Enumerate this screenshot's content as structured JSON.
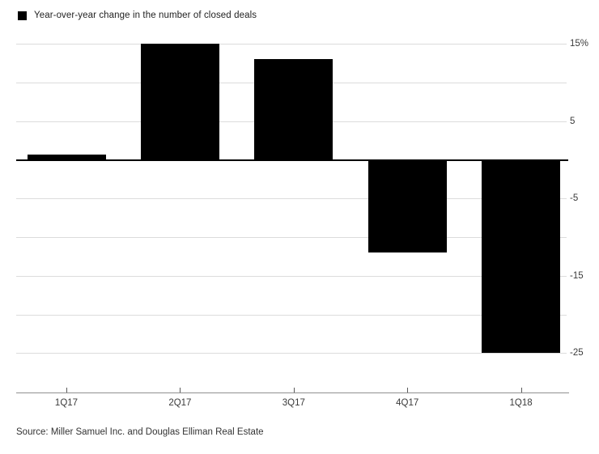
{
  "legend": {
    "label": "Year-over-year change in the number of closed deals",
    "marker_color": "#000000"
  },
  "source": {
    "text": "Source: Miller Samuel Inc. and Douglas Elliman Real Estate"
  },
  "chart_data": {
    "type": "bar",
    "title": "Year-over-year change in the number of closed deals",
    "categories": [
      "1Q17",
      "2Q17",
      "3Q17",
      "4Q17",
      "1Q18"
    ],
    "values": [
      0.7,
      15,
      13,
      -12,
      -25
    ],
    "unit": "%",
    "xlabel": "",
    "ylabel": "",
    "ylim": [
      -25,
      15
    ],
    "ytick_interval": 5,
    "ytick_labels": {
      "15": "15%",
      "5": "5",
      "-5": "-5",
      "-15": "-15",
      "-25": "-25"
    },
    "grid": true,
    "legend_position": "top-left",
    "bar_color": "#000000",
    "gridline_color": "#dcdcdc",
    "zero_line_color": "#000000",
    "axis_line_color": "#8f8f8f",
    "label_color": "#3a3a3a"
  }
}
